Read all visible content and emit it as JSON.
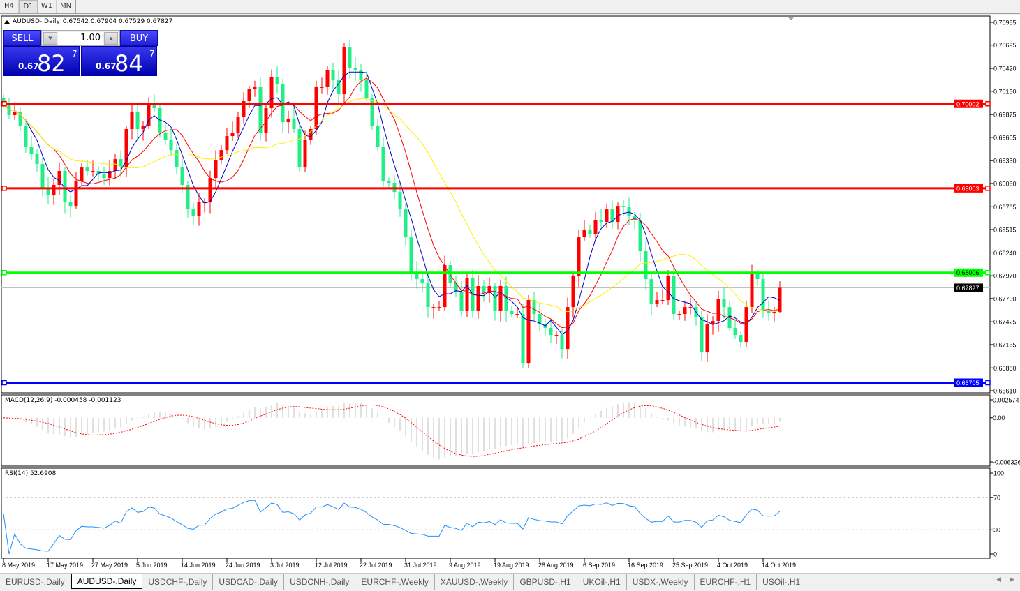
{
  "toolbar": {
    "timeframes": [
      "H4",
      "D1",
      "W1",
      "MN"
    ],
    "active": "D1"
  },
  "chart_header": {
    "symbol": "AUDUSD-,Daily",
    "ohlc": "0.67542 0.67904 0.67529 0.67827"
  },
  "trade_panel": {
    "sell_label": "SELL",
    "buy_label": "BUY",
    "lot": "1.00",
    "sell": {
      "prefix": "0.67",
      "big": "82",
      "sup": "7"
    },
    "buy": {
      "prefix": "0.67",
      "big": "84",
      "sup": "7"
    }
  },
  "price_axis": {
    "ticks": [
      "0.70965",
      "0.70695",
      "0.70420",
      "0.70150",
      "0.69875",
      "0.69605",
      "0.69330",
      "0.69060",
      "0.68785",
      "0.68515",
      "0.68240",
      "0.67970",
      "0.67700",
      "0.67425",
      "0.67155",
      "0.66880",
      "0.66610"
    ]
  },
  "levels": [
    {
      "price": "0.70002",
      "color": "#ff0000"
    },
    {
      "price": "0.69003",
      "color": "#ff0000"
    },
    {
      "price": "0.68006",
      "color": "#00ff00"
    },
    {
      "price": "0.66705",
      "color": "#0000ff"
    }
  ],
  "current_price": "0.67827",
  "macd": {
    "label": "MACD(12,26,9) -0.000458 -0.001123",
    "ticks": [
      "0.002574",
      "0.00",
      "-0.006326"
    ]
  },
  "rsi": {
    "label": "RSI(14) 52.6908",
    "ticks": [
      "100",
      "70",
      "30",
      "0"
    ],
    "levels": [
      70,
      30
    ]
  },
  "dates": [
    "8 May 2019",
    "17 May 2019",
    "27 May 2019",
    "5 Jun 2019",
    "14 Jun 2019",
    "24 Jun 2019",
    "3 Jul 2019",
    "12 Jul 2019",
    "22 Jul 2019",
    "31 Jul 2019",
    "9 Aug 2019",
    "19 Aug 2019",
    "28 Aug 2019",
    "6 Sep 2019",
    "16 Sep 2019",
    "25 Sep 2019",
    "4 Oct 2019",
    "14 Oct 2019"
  ],
  "tabs": [
    "EURUSD-,Daily",
    "AUDUSD-,Daily",
    "USDCHF-,Daily",
    "USDCAD-,Daily",
    "USDCNH-,Daily",
    "EURCHF-,Weekly",
    "XAUUSD-,Weekly",
    "GBPUSD-,H1",
    "UKOil-,H1",
    "USDX-,Weekly",
    "EURCHF-,H1",
    "USOil-,H1"
  ],
  "active_tab": "AUDUSD-,Daily",
  "colors": {
    "bull": "#ff0000",
    "bear": "#22ee88",
    "ma_fast": "#0000cc",
    "ma_mid": "#ff0000",
    "ma_slow": "#ffee00",
    "rsi": "#1e90ff",
    "macd_hist": "#c0c0c0",
    "macd_signal": "#ff0000"
  },
  "chart_data": {
    "type": "candlestick",
    "symbol": "AUDUSD-",
    "timeframe": "Daily",
    "ylim": [
      0.6661,
      0.70965
    ],
    "closes": [
      0.69992,
      0.69868,
      0.69909,
      0.69744,
      0.69497,
      0.69414,
      0.6929,
      0.69002,
      0.68919,
      0.69043,
      0.69208,
      0.68837,
      0.68795,
      0.69084,
      0.69249,
      0.69208,
      0.69208,
      0.69167,
      0.69125,
      0.69208,
      0.69348,
      0.69249,
      0.69703,
      0.69909,
      0.69703,
      0.69744,
      0.69992,
      0.6995,
      0.69662,
      0.69579,
      0.69455,
      0.69249,
      0.69043,
      0.68754,
      0.68672,
      0.68837,
      0.68837,
      0.69125,
      0.69332,
      0.69455,
      0.6962,
      0.69662,
      0.69843,
      0.70033,
      0.70173,
      0.70198,
      0.69662,
      0.6995,
      0.70322,
      0.70239,
      0.69785,
      0.69827,
      0.69703,
      0.69249,
      0.69579,
      0.69703,
      0.70198,
      0.70198,
      0.70404,
      0.7028,
      0.70115,
      0.70668,
      0.70421,
      0.70404,
      0.7028,
      0.70074,
      0.69744,
      0.69497,
      0.69084,
      0.69068,
      0.6896,
      0.68754,
      0.68424,
      0.68012,
      0.67929,
      0.67888,
      0.67599,
      0.67599,
      0.67599,
      0.68094,
      0.67888,
      0.67781,
      0.67558,
      0.67946,
      0.67558,
      0.67847,
      0.67764,
      0.67847,
      0.67558,
      0.67847,
      0.67558,
      0.67517,
      0.67517,
      0.66939,
      0.67682,
      0.67517,
      0.67393,
      0.67352,
      0.67269,
      0.67269,
      0.67104,
      0.67599,
      0.6797,
      0.68424,
      0.68507,
      0.68465,
      0.6863,
      0.68606,
      0.68754,
      0.68606,
      0.68795,
      0.68779,
      0.68672,
      0.6863,
      0.68259,
      0.67929,
      0.6764,
      0.67682,
      0.67682,
      0.6797,
      0.67517,
      0.67517,
      0.67599,
      0.67599,
      0.67475,
      0.67063,
      0.67393,
      0.67434,
      0.67698,
      0.67599,
      0.67352,
      0.67269,
      0.67187,
      0.67599,
      0.67987,
      0.67929,
      0.67558,
      0.67533,
      0.67542,
      0.67827
    ],
    "last_bar": {
      "open": 0.67542,
      "high": 0.67904,
      "low": 0.67529,
      "close": 0.67827
    }
  }
}
